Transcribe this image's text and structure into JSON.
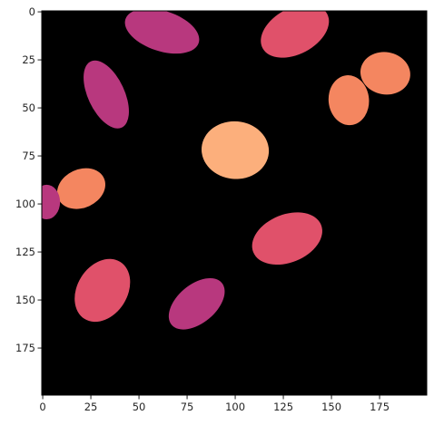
{
  "chart_data": {
    "type": "heatmap",
    "title": "",
    "xlabel": "",
    "ylabel": "",
    "image_shape": [
      200,
      200
    ],
    "xlim": [
      -0.5,
      199.5
    ],
    "ylim": [
      199.5,
      -0.5
    ],
    "background_color": "#000000",
    "x_ticks": [
      0,
      25,
      50,
      75,
      100,
      125,
      150,
      175
    ],
    "y_ticks": [
      0,
      25,
      50,
      75,
      100,
      125,
      150,
      175
    ],
    "x_tick_labels": [
      "0",
      "25",
      "50",
      "75",
      "100",
      "125",
      "150",
      "175"
    ],
    "y_tick_labels": [
      "0",
      "25",
      "50",
      "75",
      "100",
      "125",
      "150",
      "175"
    ],
    "regions": [
      {
        "cx": 62,
        "cy": 10,
        "rx": 20,
        "ry": 10.5,
        "angle": 18,
        "color": "#b8387e"
      },
      {
        "cx": 131,
        "cy": 10,
        "rx": 19,
        "ry": 12,
        "angle": -28,
        "color": "#e0516a"
      },
      {
        "cx": 33,
        "cy": 43,
        "rx": 9.5,
        "ry": 19,
        "angle": -25,
        "color": "#b8387e"
      },
      {
        "cx": 178,
        "cy": 32,
        "rx": 13,
        "ry": 11,
        "angle": 10,
        "color": "#f48660"
      },
      {
        "cx": 159,
        "cy": 46,
        "rx": 10.5,
        "ry": 13,
        "angle": -5,
        "color": "#f48660"
      },
      {
        "cx": 100,
        "cy": 72,
        "rx": 17.5,
        "ry": 15,
        "angle": 5,
        "color": "#fcaf7c"
      },
      {
        "cx": 20,
        "cy": 92,
        "rx": 13,
        "ry": 10,
        "angle": -25,
        "color": "#f48660"
      },
      {
        "cx": 2,
        "cy": 99,
        "rx": 7,
        "ry": 9,
        "angle": 0,
        "color": "#b8387e"
      },
      {
        "cx": 127,
        "cy": 118,
        "rx": 19,
        "ry": 12.5,
        "angle": -22,
        "color": "#e0516a"
      },
      {
        "cx": 31,
        "cy": 145,
        "rx": 13,
        "ry": 17.5,
        "angle": 32,
        "color": "#e0516a"
      },
      {
        "cx": 80,
        "cy": 152,
        "rx": 10,
        "ry": 17,
        "angle": 50,
        "color": "#b8387e"
      }
    ]
  }
}
